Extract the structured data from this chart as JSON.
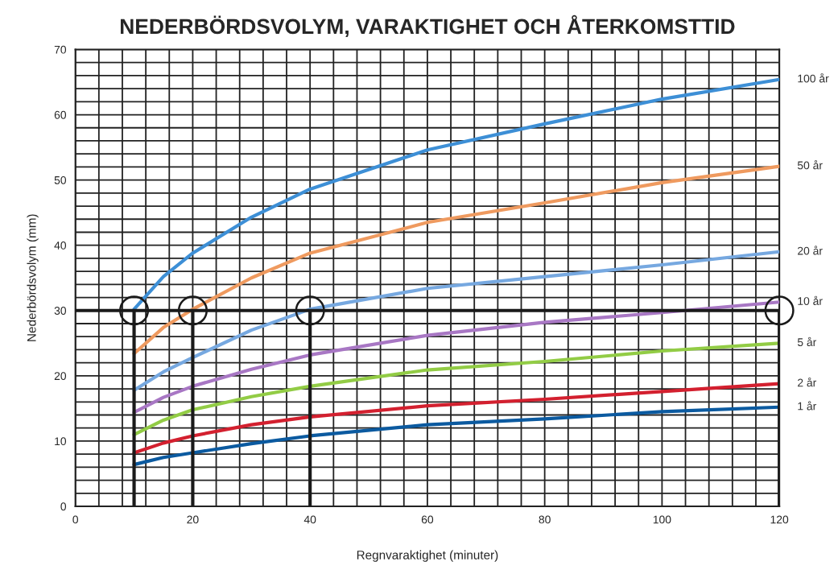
{
  "chart_data": {
    "type": "line",
    "title": "NEDERBÖRDSVOLYM, VARAKTIGHET OCH ÅTERKOMSTTID",
    "xlabel": "Regnvaraktighet (minuter)",
    "ylabel": "Nederbördsvolym (mm)",
    "xlim": [
      0,
      120
    ],
    "ylim": [
      0,
      70
    ],
    "xticks": [
      0,
      {
        "value": 4,
        "label": null
      },
      {
        "value": 8,
        "label": null
      },
      {
        "value": 12,
        "label": null
      },
      {
        "value": 16,
        "label": null
      },
      20,
      {
        "value": 24,
        "label": null
      },
      {
        "value": 28,
        "label": null
      },
      {
        "value": 32,
        "label": null
      },
      {
        "value": 36,
        "label": null
      },
      40,
      {
        "value": 44,
        "label": null
      },
      {
        "value": 48,
        "label": null
      },
      {
        "value": 52,
        "label": null
      },
      {
        "value": 56,
        "label": null
      },
      60,
      {
        "value": 64,
        "label": null
      },
      {
        "value": 68,
        "label": null
      },
      {
        "value": 72,
        "label": null
      },
      {
        "value": 76,
        "label": null
      },
      80,
      {
        "value": 84,
        "label": null
      },
      {
        "value": 88,
        "label": null
      },
      {
        "value": 92,
        "label": null
      },
      {
        "value": 96,
        "label": null
      },
      100,
      {
        "value": 104,
        "label": null
      },
      {
        "value": 108,
        "label": null
      },
      {
        "value": 112,
        "label": null
      },
      {
        "value": 116,
        "label": null
      },
      120
    ],
    "yticks": [
      0,
      {
        "value": 2,
        "label": null
      },
      {
        "value": 4,
        "label": null
      },
      {
        "value": 6,
        "label": null
      },
      {
        "value": 8,
        "label": null
      },
      10,
      {
        "value": 12,
        "label": null
      },
      {
        "value": 14,
        "label": null
      },
      {
        "value": 16,
        "label": null
      },
      {
        "value": 18,
        "label": null
      },
      20,
      {
        "value": 22,
        "label": null
      },
      {
        "value": 24,
        "label": null
      },
      {
        "value": 26,
        "label": null
      },
      {
        "value": 28,
        "label": null
      },
      30,
      {
        "value": 32,
        "label": null
      },
      {
        "value": 34,
        "label": null
      },
      {
        "value": 36,
        "label": null
      },
      {
        "value": 38,
        "label": null
      },
      40,
      {
        "value": 42,
        "label": null
      },
      {
        "value": 44,
        "label": null
      },
      {
        "value": 46,
        "label": null
      },
      {
        "value": 48,
        "label": null
      },
      50,
      {
        "value": 52,
        "label": null
      },
      {
        "value": 54,
        "label": null
      },
      {
        "value": 56,
        "label": null
      },
      {
        "value": 58,
        "label": null
      },
      60,
      {
        "value": 62,
        "label": null
      },
      {
        "value": 64,
        "label": null
      },
      {
        "value": 66,
        "label": null
      },
      {
        "value": 68,
        "label": null
      },
      70
    ],
    "grid": true,
    "x": [
      10,
      15,
      20,
      30,
      40,
      60,
      80,
      100,
      120
    ],
    "series": [
      {
        "name": "100 år",
        "color": "#3d8fd6",
        "values": [
          30.2,
          35.2,
          38.8,
          44.3,
          48.6,
          54.6,
          58.6,
          62.4,
          65.4
        ]
      },
      {
        "name": "50 år",
        "color": "#ef9a5f",
        "values": [
          23.4,
          27.4,
          30.2,
          35.0,
          38.8,
          43.5,
          46.5,
          49.6,
          52.1
        ]
      },
      {
        "name": "20 år",
        "color": "#76a8e0",
        "values": [
          17.8,
          20.6,
          22.8,
          27.0,
          30.2,
          33.4,
          35.2,
          37.0,
          39.0
        ]
      },
      {
        "name": "10 år",
        "color": "#a877c4",
        "values": [
          14.4,
          16.7,
          18.4,
          21.0,
          23.2,
          26.2,
          28.2,
          29.7,
          31.3
        ]
      },
      {
        "name": "5 år",
        "color": "#92cc45",
        "values": [
          11.0,
          13.2,
          14.8,
          16.8,
          18.4,
          20.9,
          22.2,
          23.8,
          25.0
        ]
      },
      {
        "name": "2 år",
        "color": "#d3202f",
        "values": [
          8.2,
          9.7,
          10.8,
          12.5,
          13.7,
          15.4,
          16.4,
          17.6,
          18.8
        ]
      },
      {
        "name": "1 år",
        "color": "#0b5aa0",
        "values": [
          6.4,
          7.5,
          8.2,
          9.6,
          10.8,
          12.5,
          13.4,
          14.5,
          15.2
        ]
      },
      {
        "color": "#1a1a1a",
        "x": [
          10,
          10
        ],
        "values": [
          0,
          30
        ]
      },
      {
        "color": "#1a1a1a",
        "x": [
          20,
          20
        ],
        "values": [
          0,
          30
        ]
      },
      {
        "color": "#1a1a1a",
        "x": [
          40,
          40
        ],
        "values": [
          0,
          30
        ]
      },
      {
        "color": "#1a1a1a",
        "x": [
          120,
          120
        ],
        "values": [
          0,
          30
        ]
      },
      {
        "type": "scatter",
        "marker": "circle",
        "color": "#1a1a1a",
        "x": [
          10,
          20,
          40,
          120
        ],
        "values": [
          30,
          30,
          30,
          30
        ]
      }
    ],
    "ref_lines": [
      {
        "axis": "y",
        "value": 30,
        "color": "#1a1a1a",
        "line_style": "solid"
      }
    ]
  }
}
